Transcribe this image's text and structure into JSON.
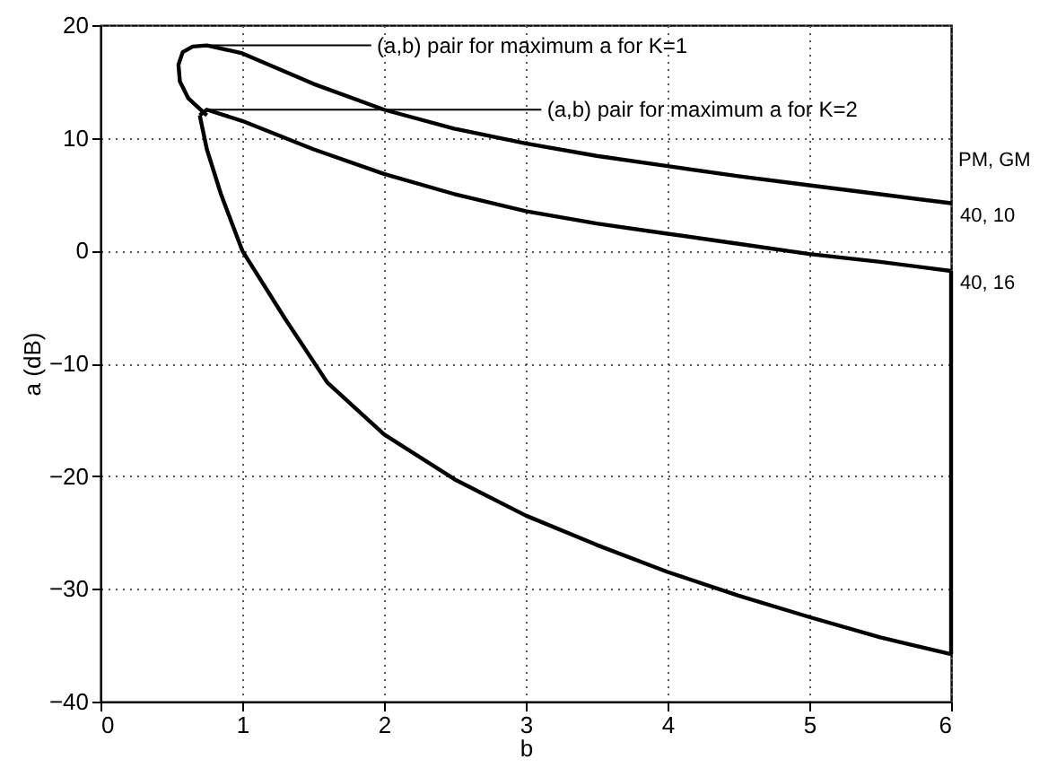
{
  "chart_data": {
    "type": "line",
    "xlabel": "b",
    "ylabel": "a (dB)",
    "xlim": [
      0,
      6
    ],
    "ylim": [
      -40,
      20
    ],
    "xticks": [
      0,
      1,
      2,
      3,
      4,
      5,
      6
    ],
    "yticks": [
      -40,
      -30,
      -20,
      -10,
      0,
      10,
      20
    ],
    "grid": true,
    "line_style": "solid",
    "marker": "none",
    "series": [
      {
        "color": "#000000",
        "x": [
          0.75,
          0.62,
          0.56,
          0.55,
          0.58,
          0.65,
          0.75,
          1,
          1.5,
          2,
          2.5,
          3,
          3.5,
          4,
          4.5,
          5,
          5.5,
          6
        ],
        "values": [
          12,
          13.5,
          15,
          16.5,
          17.6,
          18.1,
          18.2,
          17.5,
          14.8,
          12.5,
          10.8,
          9.5,
          8.4,
          7.5,
          6.6,
          5.8,
          5,
          4.2
        ]
      },
      {
        "color": "#000000",
        "x": [
          0.7,
          0.75,
          0.85,
          1,
          1.3,
          1.6,
          2,
          2.5,
          3,
          3.5,
          4,
          4.5,
          5,
          5.5,
          6
        ],
        "values": [
          12,
          9,
          5,
          0,
          -6,
          -11.7,
          -16.3,
          -20.3,
          -23.5,
          -26.1,
          -28.5,
          -30.6,
          -32.5,
          -34.3,
          -35.8
        ]
      },
      {
        "color": "#000000",
        "x": [
          0.7,
          0.75,
          1,
          1.5,
          2,
          2.5,
          3,
          3.5,
          4,
          4.5,
          5,
          5.5,
          6
        ],
        "values": [
          12,
          12.5,
          11.5,
          9,
          6.8,
          5,
          3.5,
          2.4,
          1.5,
          0.6,
          -0.3,
          -1,
          -1.8
        ]
      },
      {
        "color": "#000000",
        "x": [
          6,
          6
        ],
        "values": [
          -1.8,
          -35.8
        ]
      }
    ],
    "annotations": [
      {
        "text": "(a,b) pair for maximum a for K=1",
        "x": 0.75,
        "y": 18.2
      },
      {
        "text": "(a,b) pair for maximum a for K=2",
        "x": 0.75,
        "y": 12.5
      },
      "PM, GM",
      "40, 10",
      "40, 16"
    ]
  }
}
